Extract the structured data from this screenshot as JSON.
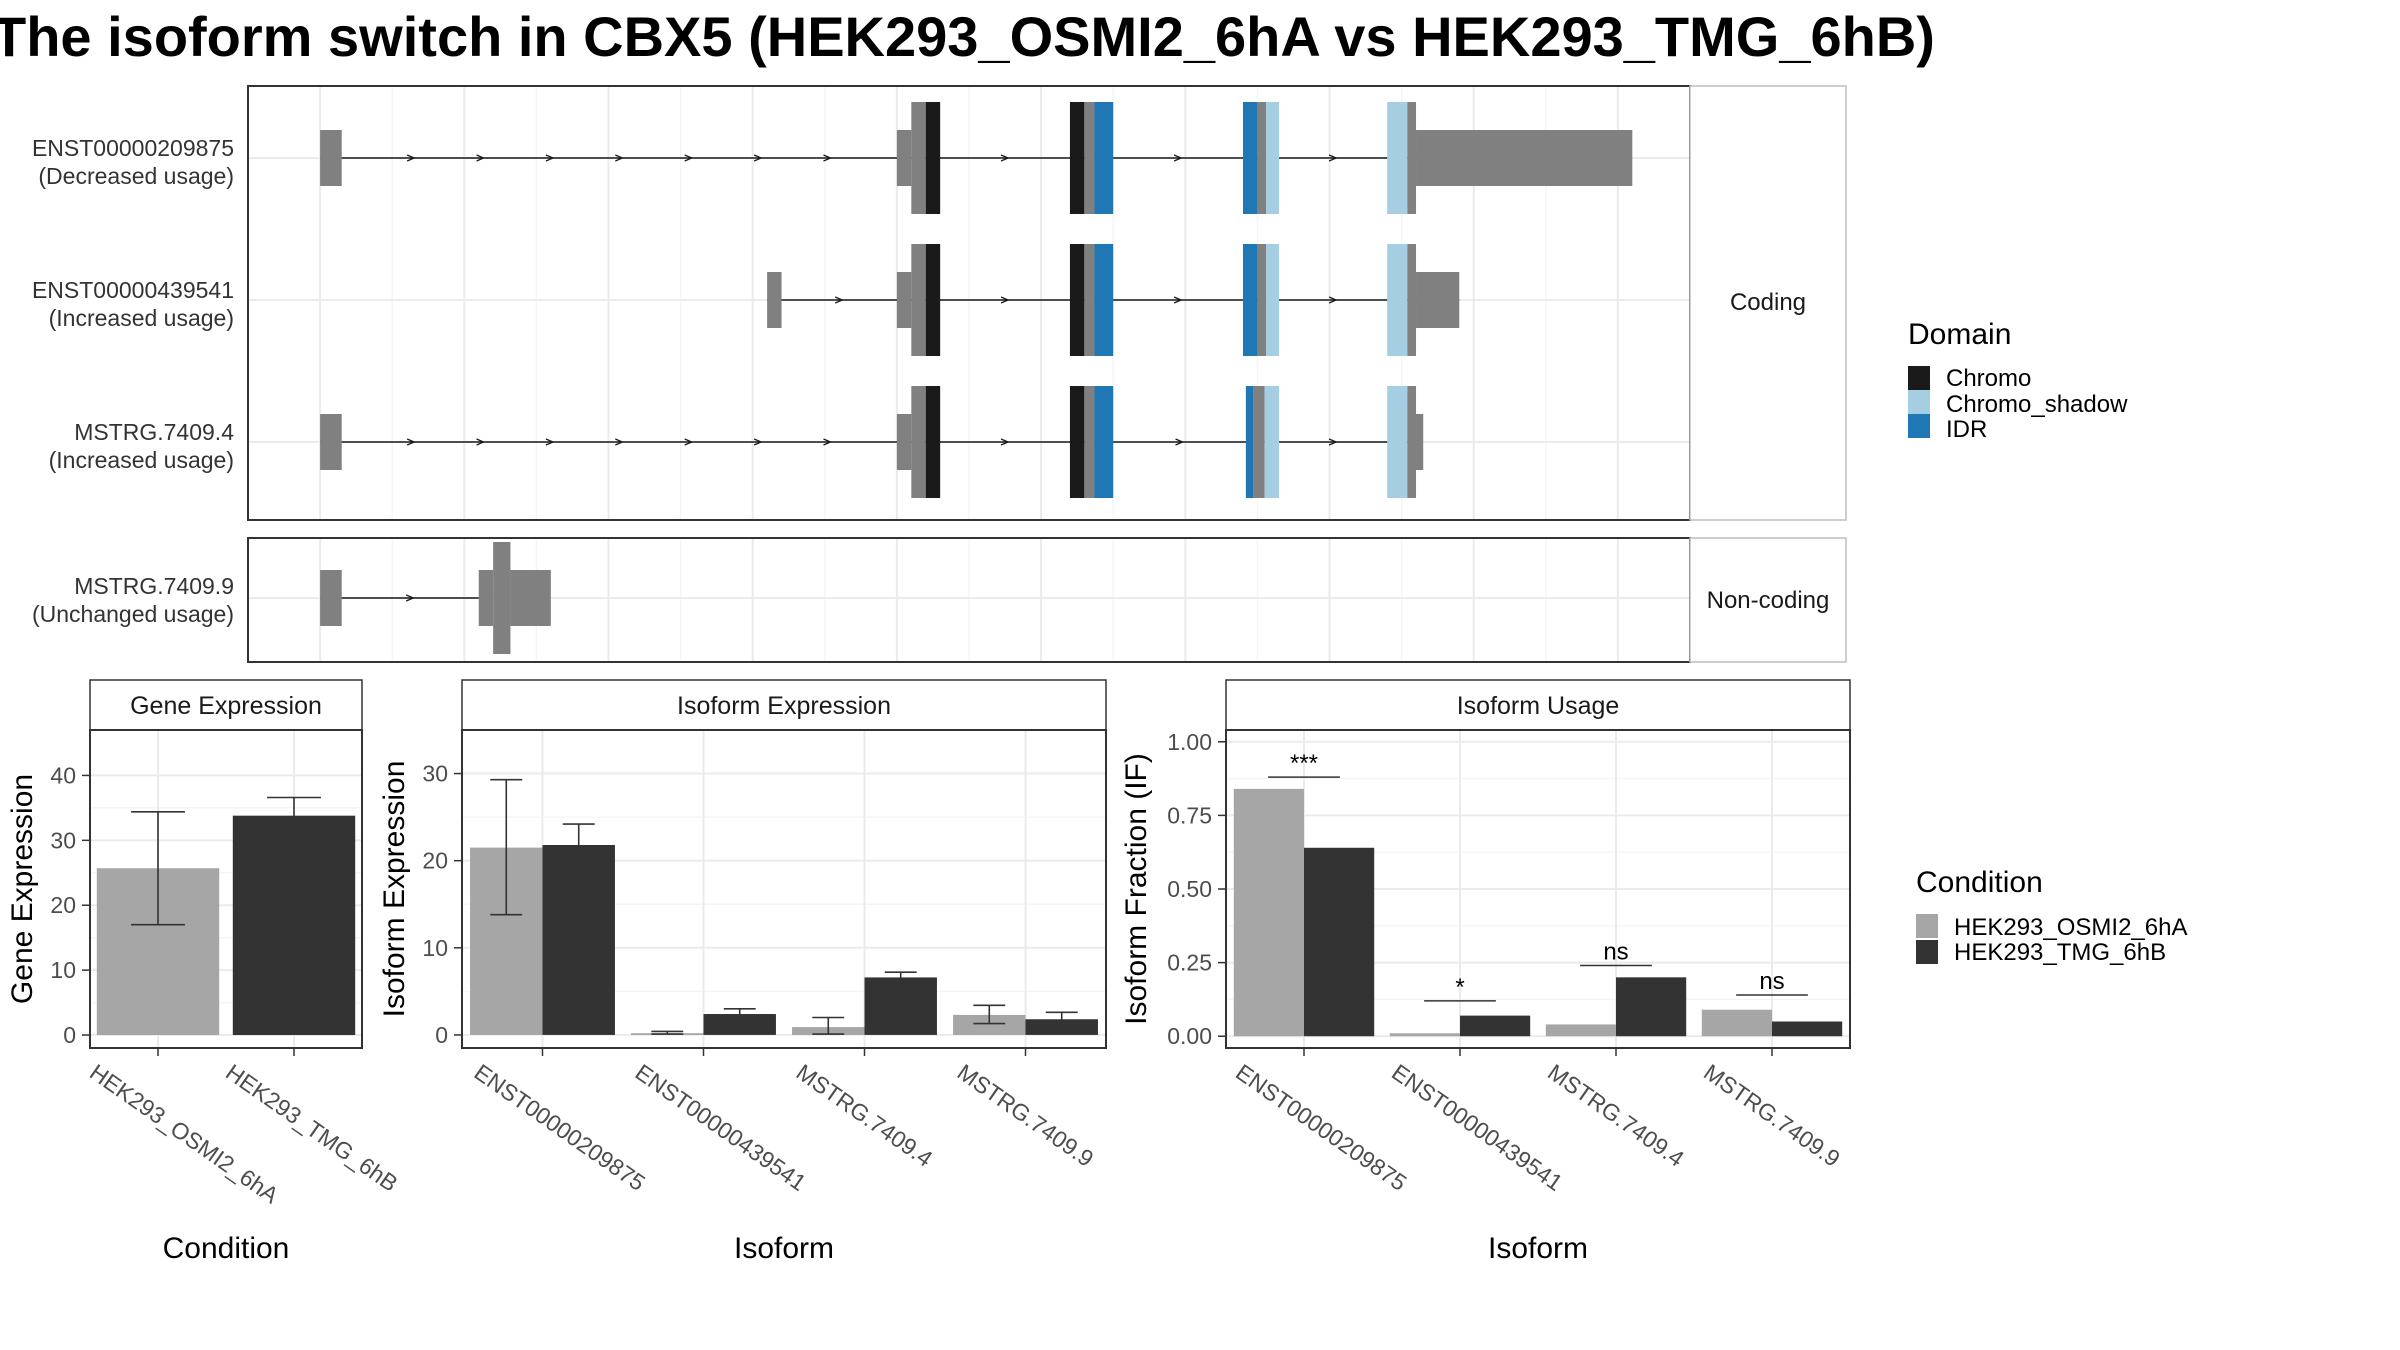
{
  "title": "The isoform switch in CBX5 (HEK293_OSMI2_6hA vs HEK293_TMG_6hB)",
  "legends": {
    "domain": {
      "title": "Domain",
      "items": [
        {
          "label": "Chromo",
          "color": "#1a1a1a"
        },
        {
          "label": "Chromo_shadow",
          "color": "#a6cee3"
        },
        {
          "label": "IDR",
          "color": "#1f78b4"
        }
      ]
    },
    "condition": {
      "title": "Condition",
      "items": [
        {
          "label": "HEK293_OSMI2_6hA",
          "color": "#a6a6a6"
        },
        {
          "label": "HEK293_TMG_6hB",
          "color": "#333333"
        }
      ]
    }
  },
  "chart_data": [
    {
      "type": "gene-structure",
      "coord_range": [
        0,
        100
      ],
      "panels": [
        {
          "label": "Coding",
          "transcripts": [
            {
              "id": "ENST00000209875",
              "usage": "(Decreased usage)",
              "intron": [
                5,
                84
              ],
              "exons": [
                [
                  5,
                  6.5,
                  "utr"
                ],
                [
                  45,
                  46,
                  "utr"
                ],
                [
                  46,
                  47,
                  "cds"
                ],
                [
                  47,
                  48,
                  "Chromo"
                ],
                [
                  57,
                  58,
                  "Chromo"
                ],
                [
                  58,
                  58.7,
                  "cds"
                ],
                [
                  58.7,
                  60,
                  "IDR"
                ],
                [
                  69,
                  70,
                  "IDR"
                ],
                [
                  70,
                  70.6,
                  "cds"
                ],
                [
                  70.6,
                  71.5,
                  "Chromo_shadow"
                ],
                [
                  79,
                  80.4,
                  "Chromo_shadow"
                ],
                [
                  80.4,
                  81,
                  "cds"
                ],
                [
                  81,
                  96,
                  "utr"
                ]
              ]
            },
            {
              "id": "ENST00000439541",
              "usage": "(Increased usage)",
              "intron": [
                36,
                84
              ],
              "exons": [
                [
                  36,
                  37,
                  "utr"
                ],
                [
                  45,
                  46,
                  "utr"
                ],
                [
                  46,
                  47,
                  "cds"
                ],
                [
                  47,
                  48,
                  "Chromo"
                ],
                [
                  57,
                  58,
                  "Chromo"
                ],
                [
                  58,
                  58.7,
                  "cds"
                ],
                [
                  58.7,
                  60,
                  "IDR"
                ],
                [
                  69,
                  70,
                  "IDR"
                ],
                [
                  70,
                  70.6,
                  "cds"
                ],
                [
                  70.6,
                  71.5,
                  "Chromo_shadow"
                ],
                [
                  79,
                  80.4,
                  "Chromo_shadow"
                ],
                [
                  80.4,
                  81,
                  "cds"
                ],
                [
                  81,
                  84,
                  "utr"
                ]
              ]
            },
            {
              "id": "MSTRG.7409.4",
              "usage": "(Increased usage)",
              "intron": [
                5,
                81
              ],
              "exons": [
                [
                  5,
                  6.5,
                  "utr"
                ],
                [
                  45,
                  46,
                  "utr"
                ],
                [
                  46,
                  47,
                  "cds"
                ],
                [
                  47,
                  48,
                  "Chromo"
                ],
                [
                  57,
                  58,
                  "Chromo"
                ],
                [
                  58,
                  58.7,
                  "cds"
                ],
                [
                  58.7,
                  60,
                  "IDR"
                ],
                [
                  69.2,
                  69.7,
                  "IDR"
                ],
                [
                  69.7,
                  70.5,
                  "cds"
                ],
                [
                  70.5,
                  71.5,
                  "Chromo_shadow"
                ],
                [
                  79,
                  80.4,
                  "Chromo_shadow"
                ],
                [
                  80.4,
                  81,
                  "cds"
                ],
                [
                  81,
                  81.5,
                  "utr"
                ]
              ]
            }
          ]
        },
        {
          "label": "Non-coding",
          "transcripts": [
            {
              "id": "MSTRG.7409.9",
              "usage": "(Unchanged usage)",
              "intron": [
                5,
                16
              ],
              "exons": [
                [
                  5,
                  6.5,
                  "utr"
                ],
                [
                  16,
                  17,
                  "ncexon"
                ],
                [
                  17,
                  18.2,
                  "ncexon-tall"
                ],
                [
                  18.2,
                  21,
                  "ncexon"
                ]
              ]
            }
          ]
        }
      ]
    },
    {
      "type": "bar",
      "title": "Gene Expression",
      "xlabel": "Condition",
      "ylabel": "Gene Expression",
      "ylim": [
        -2,
        47
      ],
      "yticks": [
        0,
        10,
        20,
        30,
        40
      ],
      "categories": [
        "HEK293_OSMI2_6hA",
        "HEK293_TMG_6hB"
      ],
      "series": [
        {
          "name": "HEK293_OSMI2_6hA",
          "values": [
            25.7,
            null
          ],
          "errors": [
            [
              17.0,
              34.4
            ],
            null
          ]
        },
        {
          "name": "HEK293_TMG_6hB",
          "values": [
            null,
            33.8
          ],
          "errors": [
            null,
            [
              31.2,
              36.6
            ]
          ]
        }
      ]
    },
    {
      "type": "bar",
      "title": "Isoform Expression",
      "xlabel": "Isoform",
      "ylabel": "Isoform Expression",
      "ylim": [
        -1.5,
        35
      ],
      "yticks": [
        0,
        10,
        20,
        30
      ],
      "categories": [
        "ENST00000209875",
        "ENST00000439541",
        "MSTRG.7409.4",
        "MSTRG.7409.9"
      ],
      "series": [
        {
          "name": "HEK293_OSMI2_6hA",
          "values": [
            21.5,
            0.2,
            0.9,
            2.3
          ],
          "errors": [
            [
              13.8,
              29.3
            ],
            [
              0.1,
              0.4
            ],
            [
              0.1,
              2.0
            ],
            [
              1.3,
              3.4
            ]
          ]
        },
        {
          "name": "HEK293_TMG_6hB",
          "values": [
            21.8,
            2.4,
            6.6,
            1.8
          ],
          "errors": [
            [
              19.6,
              24.2
            ],
            [
              1.8,
              3.0
            ],
            [
              6.1,
              7.2
            ],
            [
              0.9,
              2.6
            ]
          ]
        }
      ]
    },
    {
      "type": "bar",
      "title": "Isoform Usage",
      "xlabel": "Isoform",
      "ylabel": "Isoform Fraction (IF)",
      "ylim": [
        -0.04,
        1.04
      ],
      "yticks": [
        "0.00",
        "0.25",
        "0.50",
        "0.75",
        "1.00"
      ],
      "categories": [
        "ENST00000209875",
        "ENST00000439541",
        "MSTRG.7409.4",
        "MSTRG.7409.9"
      ],
      "series": [
        {
          "name": "HEK293_OSMI2_6hA",
          "values": [
            0.84,
            0.01,
            0.04,
            0.09
          ]
        },
        {
          "name": "HEK293_TMG_6hB",
          "values": [
            0.64,
            0.07,
            0.2,
            0.05
          ]
        }
      ],
      "significance": [
        {
          "label": "***",
          "y": 0.88
        },
        {
          "label": "*",
          "y": 0.12
        },
        {
          "label": "ns",
          "y": 0.24
        },
        {
          "label": "ns",
          "y": 0.14
        }
      ]
    }
  ]
}
